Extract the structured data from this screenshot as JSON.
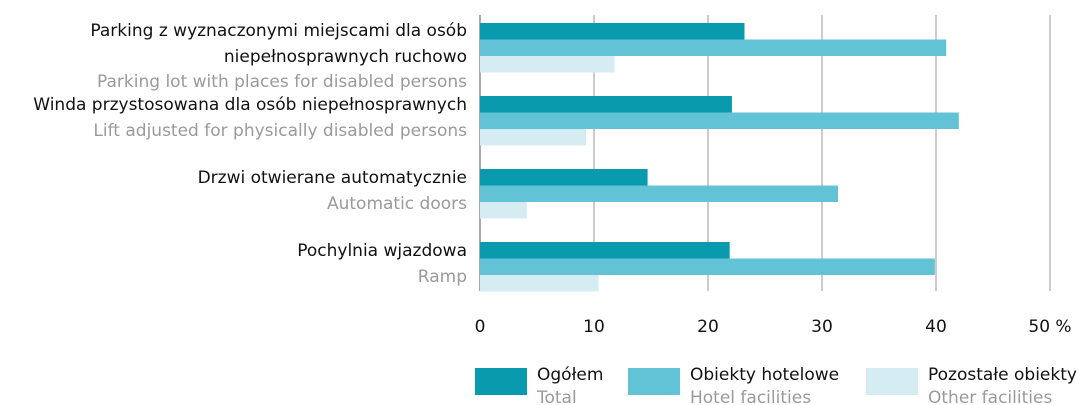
{
  "chart_data": {
    "type": "bar",
    "orientation": "horizontal",
    "categories": [
      [
        "Parking z wyznaczonymi miejscami dla osób",
        "niepełnosprawnych ruchowo"
      ],
      [
        "Winda przystosowana dla osób niepełnosprawnych"
      ],
      [
        "Drzwi otwierane automatycznie"
      ],
      [
        "Pochylnia wjazdowa"
      ]
    ],
    "categories_en": [
      "Parking lot with places for disabled persons",
      "Lift adjusted for physically disabled persons",
      "Automatic doors",
      "Ramp"
    ],
    "series": [
      {
        "name": "Ogółem",
        "name_en": "Total",
        "color": "#0a9aad",
        "values": [
          23.2,
          22.1,
          14.7,
          21.9
        ]
      },
      {
        "name": "Obiekty hotelowe",
        "name_en": "Hotel facilities",
        "color": "#62c3d6",
        "values": [
          40.9,
          42.0,
          31.4,
          39.9
        ]
      },
      {
        "name": "Pozostałe obiekty",
        "name_en": "Other facilities",
        "color": "#d4ecf2",
        "values": [
          11.8,
          9.3,
          4.1,
          10.4
        ]
      }
    ],
    "xlim": [
      0,
      50
    ],
    "xticks": [
      0,
      10,
      20,
      30,
      40,
      {
        "value": 50,
        "label": "50 %"
      }
    ],
    "grid": true
  }
}
